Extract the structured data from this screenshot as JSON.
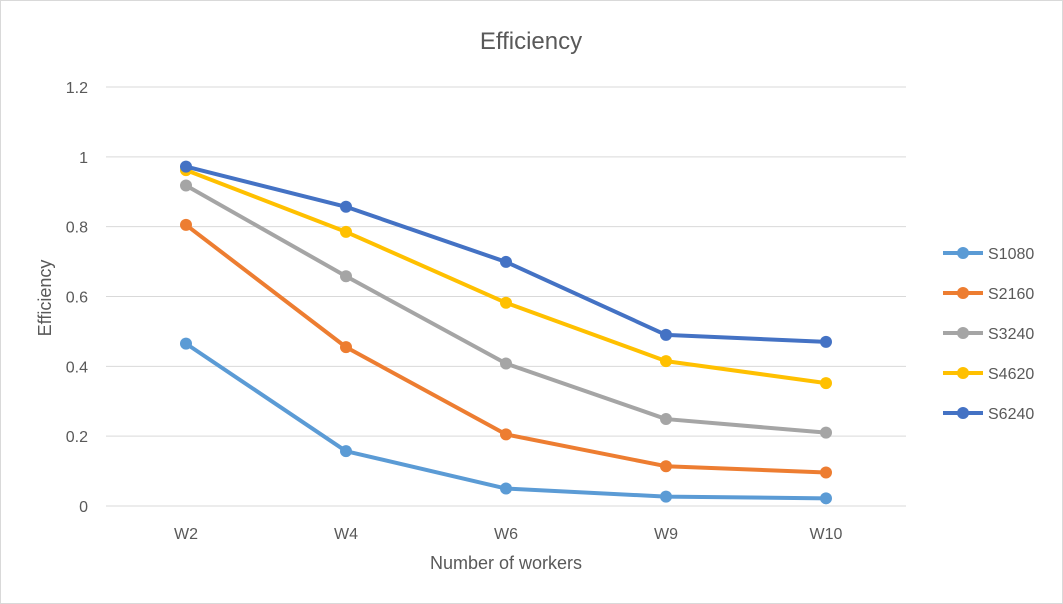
{
  "chart_data": {
    "type": "line",
    "title": "Efficiency",
    "xlabel": "Number of workers",
    "ylabel": "Efficiency",
    "categories": [
      "W2",
      "W4",
      "W6",
      "W9",
      "W10"
    ],
    "ylim": [
      0,
      1.2
    ],
    "yticks": [
      0,
      0.2,
      0.4,
      0.6,
      0.8,
      1,
      1.2
    ],
    "grid": true,
    "legend_position": "right",
    "series": [
      {
        "name": "S1080",
        "color": "#5b9bd5",
        "values": [
          0.465,
          0.157,
          0.05,
          0.027,
          0.022
        ]
      },
      {
        "name": "S2160",
        "color": "#ed7d31",
        "values": [
          0.805,
          0.455,
          0.205,
          0.114,
          0.096
        ]
      },
      {
        "name": "S3240",
        "color": "#a5a5a5",
        "values": [
          0.918,
          0.658,
          0.408,
          0.249,
          0.21
        ]
      },
      {
        "name": "S4620",
        "color": "#ffc000",
        "values": [
          0.962,
          0.785,
          0.582,
          0.415,
          0.352
        ]
      },
      {
        "name": "S6240",
        "color": "#4472c4",
        "values": [
          0.972,
          0.857,
          0.699,
          0.49,
          0.47
        ]
      }
    ]
  }
}
